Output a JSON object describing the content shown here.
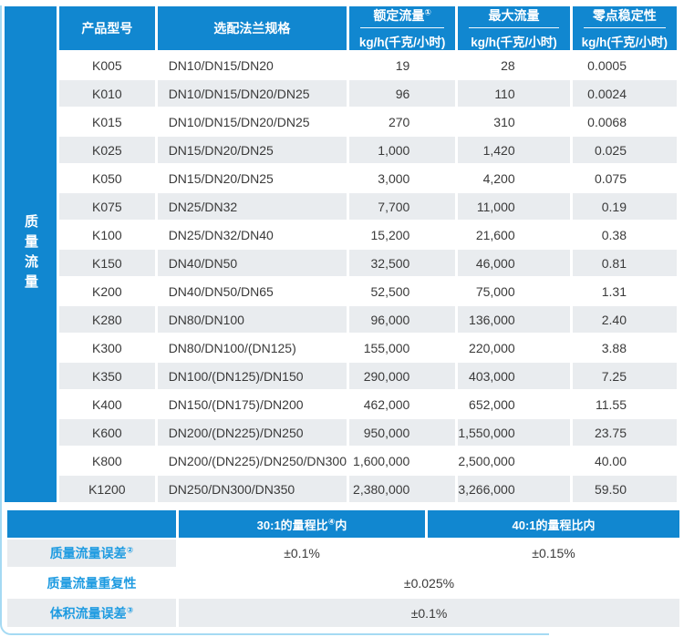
{
  "colors": {
    "accent_blue": "#1187d0",
    "label_blue": "#1e9be1",
    "row_alt_gray": "#e9ecef",
    "text_dark": "#3a3a3a",
    "frame_light_blue": "#a5daf3"
  },
  "sidebar": {
    "label": "质量流量"
  },
  "table": {
    "columns": {
      "model": "产品型号",
      "flange": "选配法兰规格",
      "rated_title": "额定流量",
      "rated_sup": "①",
      "rated_unit": "kg/h(千克/小时)",
      "max_title": "最大流量",
      "max_unit": "kg/h(千克/小时)",
      "zero_title": "零点稳定性",
      "zero_unit": "kg/h(千克/小时)"
    },
    "rows": [
      [
        "K005",
        "DN10/DN15/DN20",
        "19",
        "28",
        "0.0005"
      ],
      [
        "K010",
        "DN10/DN15/DN20/DN25",
        "96",
        "110",
        "0.0024"
      ],
      [
        "K015",
        "DN10/DN15/DN20/DN25",
        "270",
        "310",
        "0.0068"
      ],
      [
        "K025",
        "DN15/DN20/DN25",
        "1,000",
        "1,420",
        "0.025"
      ],
      [
        "K050",
        "DN15/DN20/DN25",
        "3,000",
        "4,200",
        "0.075"
      ],
      [
        "K075",
        "DN25/DN32",
        "7,700",
        "11,000",
        "0.19"
      ],
      [
        "K100",
        "DN25/DN32/DN40",
        "15,200",
        "21,600",
        "0.38"
      ],
      [
        "K150",
        "DN40/DN50",
        "32,500",
        "46,000",
        "0.81"
      ],
      [
        "K200",
        "DN40/DN50/DN65",
        "52,500",
        "75,000",
        "1.31"
      ],
      [
        "K280",
        "DN80/DN100",
        "96,000",
        "136,000",
        "2.40"
      ],
      [
        "K300",
        "DN80/DN100/(DN125)",
        "155,000",
        "220,000",
        "3.88"
      ],
      [
        "K350",
        "DN100/(DN125)/DN150",
        "290,000",
        "403,000",
        "7.25"
      ],
      [
        "K400",
        "DN150/(DN175)/DN200",
        "462,000",
        "652,000",
        "11.55"
      ],
      [
        "K600",
        "DN200/(DN225)/DN250",
        "950,000",
        "1,550,000",
        "23.75"
      ],
      [
        "K800",
        "DN200/(DN225)/DN250/DN300",
        "1,600,000",
        "2,500,000",
        "40.00"
      ],
      [
        "K1200",
        "DN250/DN300/DN350",
        "2,380,000",
        "3,266,000",
        "59.50"
      ]
    ]
  },
  "accuracy": {
    "col30_prefix": "30:1的量程比",
    "col30_sup": "④",
    "col30_suffix": "内",
    "col40_label": "40:1的量程比内",
    "mass_error": {
      "label": "质量流量误差",
      "sup": "②",
      "val30": "±0.1%",
      "val40": "±0.15%"
    },
    "repeatability": {
      "label": "质量流量重复性",
      "value": "±0.025%"
    },
    "volume_error": {
      "label": "体积流量误差",
      "sup": "③",
      "value": "±0.1%"
    }
  }
}
